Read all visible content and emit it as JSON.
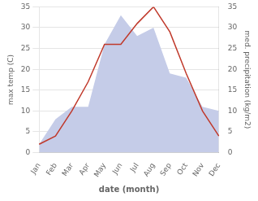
{
  "chart_data": {
    "type": "line",
    "categories": [
      "Jan",
      "Feb",
      "Mar",
      "Apr",
      "May",
      "Jun",
      "Jul",
      "Aug",
      "Sep",
      "Oct",
      "Nov",
      "Dec"
    ],
    "xlabel": "date (month)",
    "ylabel": "max temp (C)",
    "y2label": "med. precipitation (kg/m2)",
    "series": [
      {
        "type": "area",
        "axis": "y2",
        "color": "#c5cce8",
        "values": [
          2,
          8,
          11,
          11,
          26,
          33,
          28,
          30,
          19,
          18,
          11,
          10
        ]
      },
      {
        "type": "line",
        "color": "#c0392b",
        "values": [
          2,
          4,
          10,
          17,
          26,
          26,
          31,
          35,
          29,
          19,
          10,
          4
        ]
      }
    ],
    "ylim": [
      0,
      35
    ],
    "yticks": [
      0,
      5,
      10,
      15,
      20,
      25,
      30,
      35
    ],
    "y2lim": [
      0,
      35
    ],
    "y2ticks": [
      0,
      5,
      10,
      15,
      20,
      25,
      30,
      35
    ],
    "grid": true
  }
}
